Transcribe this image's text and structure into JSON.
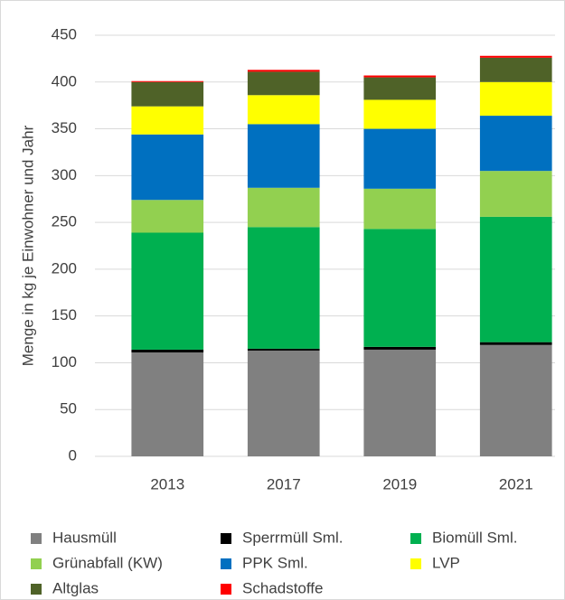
{
  "chart_data": {
    "type": "stacked_bar",
    "y_label": "Menge in kg je Einwohner und Jahr",
    "categories": [
      "2013",
      "2017",
      "2019",
      "2021"
    ],
    "series": [
      {
        "name": "Hausmüll",
        "color": "#808080",
        "values": [
          111,
          113,
          114,
          119
        ]
      },
      {
        "name": "Sperrmüll Sml.",
        "color": "#000000",
        "values": [
          3,
          2,
          3,
          3
        ]
      },
      {
        "name": "Biomüll Sml.",
        "color": "#00b050",
        "values": [
          125,
          130,
          126,
          134
        ]
      },
      {
        "name": "Grünabfall (KW)",
        "color": "#92d050",
        "values": [
          35,
          42,
          43,
          49
        ]
      },
      {
        "name": "PPK Sml.",
        "color": "#0070c0",
        "values": [
          70,
          68,
          64,
          59
        ]
      },
      {
        "name": "LVP",
        "color": "#ffff00",
        "values": [
          30,
          31,
          31,
          36
        ]
      },
      {
        "name": "Altglas",
        "color": "#4f6228",
        "values": [
          26,
          25,
          24,
          26
        ]
      },
      {
        "name": "Schadstoffe",
        "color": "#ff0000",
        "values": [
          1,
          2,
          2,
          2
        ]
      }
    ],
    "ylim": [
      0,
      450
    ],
    "yticks": [
      0,
      50,
      100,
      150,
      200,
      250,
      300,
      350,
      400,
      450
    ],
    "grid": true,
    "legend": "bottom"
  }
}
